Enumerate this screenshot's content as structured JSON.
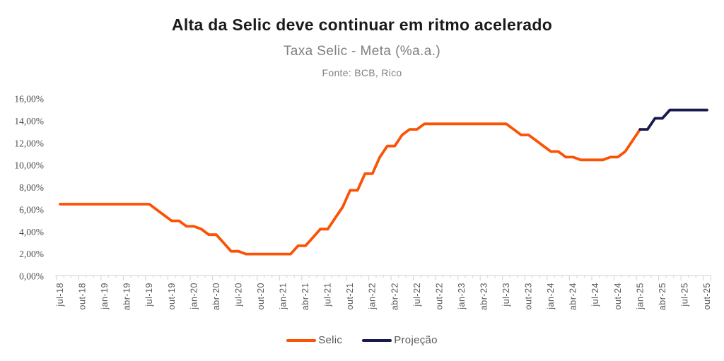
{
  "header": {
    "title": "Alta da Selic deve continuar em ritmo acelerado",
    "subtitle": "Taxa Selic - Meta (%a.a.)",
    "source": "Fonte: BCB, Rico"
  },
  "chart_data": {
    "type": "line",
    "title": "Alta da Selic deve continuar em ritmo acelerado",
    "subtitle": "Taxa Selic - Meta (%a.a.)",
    "source": "Fonte: BCB, Rico",
    "grid": false,
    "legend_position": "bottom",
    "axis_color": "#d9d9d9",
    "text_colors": {
      "title": "#1a1a1a",
      "subtitle": "#7f7f7f",
      "axis_labels": "#595959"
    },
    "x_resolution": "monthly",
    "months_total": 87,
    "x_axis": {
      "label_every_n_months": 3,
      "labels": [
        "jul-18",
        "out-18",
        "jan-19",
        "abr-19",
        "jul-19",
        "out-19",
        "jan-20",
        "abr-20",
        "jul-20",
        "out-20",
        "jan-21",
        "abr-21",
        "jul-21",
        "out-21",
        "jan-22",
        "abr-22",
        "jul-22",
        "out-22",
        "jan-23",
        "abr-23",
        "jul-23",
        "out-23",
        "jan-24",
        "abr-24",
        "jul-24",
        "out-24",
        "jan-25",
        "abr-25",
        "jul-25",
        "out-25"
      ]
    },
    "y_axis": {
      "min": 0,
      "max": 16,
      "step": 2,
      "labels": [
        "0,00%",
        "2,00%",
        "4,00%",
        "6,00%",
        "8,00%",
        "10,00%",
        "12,00%",
        "14,00%",
        "16,00%"
      ]
    },
    "series": [
      {
        "name": "Selic",
        "color": "#fa5306",
        "start_label": "jul-18",
        "start_index": 0,
        "values": [
          6.5,
          6.5,
          6.5,
          6.5,
          6.5,
          6.5,
          6.5,
          6.5,
          6.5,
          6.5,
          6.5,
          6.5,
          6.5,
          6.0,
          5.5,
          5.0,
          5.0,
          4.5,
          4.5,
          4.25,
          3.75,
          3.75,
          3.0,
          2.25,
          2.25,
          2.0,
          2.0,
          2.0,
          2.0,
          2.0,
          2.0,
          2.0,
          2.75,
          2.75,
          3.5,
          4.25,
          4.25,
          5.25,
          6.25,
          7.75,
          7.75,
          9.25,
          9.25,
          10.75,
          11.75,
          11.75,
          12.75,
          13.25,
          13.25,
          13.75,
          13.75,
          13.75,
          13.75,
          13.75,
          13.75,
          13.75,
          13.75,
          13.75,
          13.75,
          13.75,
          13.75,
          13.25,
          12.75,
          12.75,
          12.25,
          11.75,
          11.25,
          11.25,
          10.75,
          10.75,
          10.5,
          10.5,
          10.5,
          10.5,
          10.75,
          10.75,
          11.25,
          12.25,
          13.25
        ]
      },
      {
        "name": "Projeção",
        "color": "#171a4d",
        "start_label": "jan-25",
        "start_index": 78,
        "values": [
          13.25,
          13.25,
          14.25,
          14.25,
          15.0,
          15.0,
          15.0,
          15.0,
          15.0,
          15.0
        ]
      }
    ]
  }
}
